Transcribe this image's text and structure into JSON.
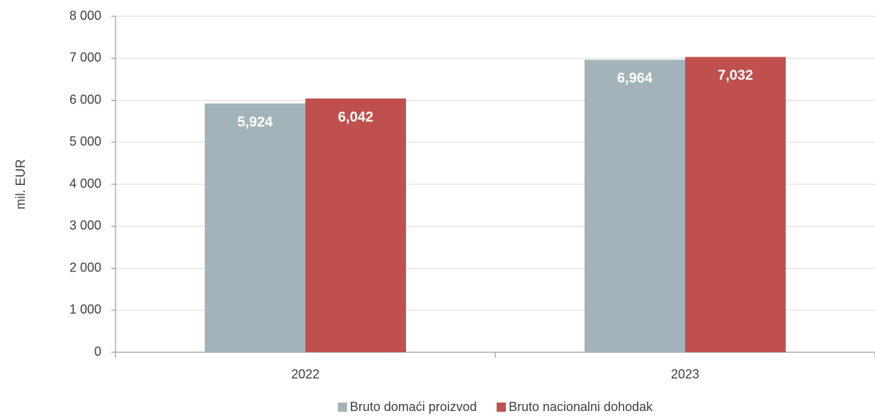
{
  "chart_data": {
    "type": "bar",
    "y_label": "mil. EUR",
    "categories": [
      "2022",
      "2023"
    ],
    "series": [
      {
        "name": "Bruto domaći proizvod",
        "color": "#a2b4ba",
        "values": [
          5924,
          6964
        ],
        "value_labels": [
          "5,924",
          "6,964"
        ]
      },
      {
        "name": "Bruto nacionalni dohodak",
        "color": "#c0504d",
        "values": [
          6042,
          7032
        ],
        "value_labels": [
          "6,042",
          "7,032"
        ]
      }
    ],
    "ylim": [
      0,
      8000
    ],
    "yticks": [
      0,
      {
        "value": 1000,
        "label": "1 000"
      },
      {
        "value": 2000,
        "label": "2 000"
      },
      {
        "value": 3000,
        "label": "3 000"
      },
      {
        "value": 4000,
        "label": "4 000"
      },
      {
        "value": 5000,
        "label": "5 000"
      },
      {
        "value": 6000,
        "label": "6 000"
      },
      {
        "value": 7000,
        "label": "7 000"
      },
      {
        "value": 8000,
        "label": "8 000"
      }
    ],
    "grid": true,
    "legend": "bottom"
  }
}
